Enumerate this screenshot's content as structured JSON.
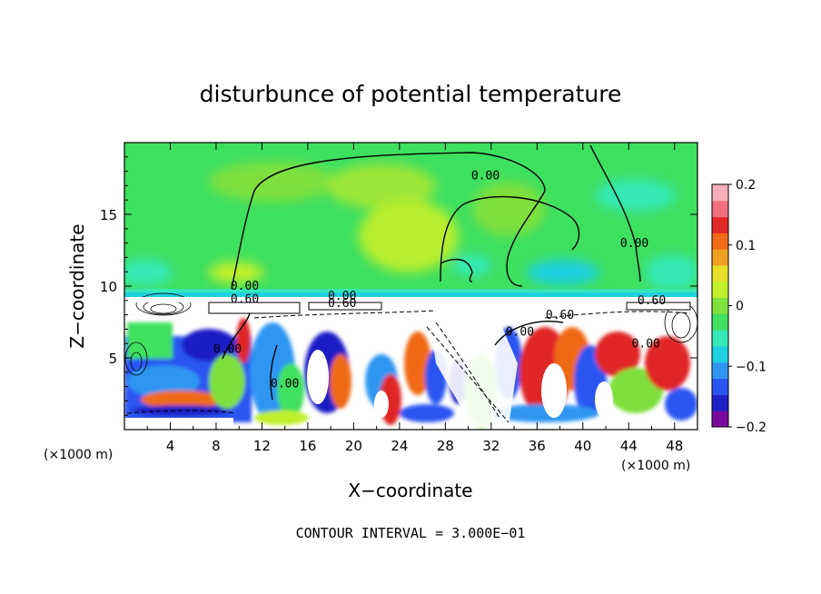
{
  "chart_data": {
    "type": "heatmap",
    "title": "disturbunce of potential temperature",
    "xlabel": "X−coordinate",
    "ylabel": "Z−coordinate",
    "x_unit_left": "(×1000 m)",
    "x_unit_right": "(×1000 m)",
    "xlim": [
      0,
      50
    ],
    "ylim": [
      0,
      20
    ],
    "x_ticks": [
      4,
      8,
      12,
      16,
      20,
      24,
      28,
      32,
      36,
      40,
      44,
      48
    ],
    "x_tick_labels": [
      "4",
      "8",
      "12",
      "16",
      "20",
      "24",
      "28",
      "32",
      "36",
      "40",
      "44",
      "48"
    ],
    "y_ticks": [
      5,
      10,
      15
    ],
    "y_tick_labels": [
      "5",
      "10",
      "15"
    ],
    "colorbar": {
      "range": [
        -0.2,
        0.2
      ],
      "labels": [
        "0.2",
        "0.1",
        "0",
        "−0.1",
        "−0.2"
      ],
      "label_values": [
        0.2,
        0.1,
        0,
        -0.1,
        -0.2
      ],
      "colors": [
        "#7a0a9e",
        "#1f1fc6",
        "#2a55f0",
        "#2f96f2",
        "#1ed0e0",
        "#36e8b4",
        "#3fe060",
        "#7fe03e",
        "#c0f02a",
        "#e8e028",
        "#f0a020",
        "#f06a18",
        "#e02828",
        "#f07080",
        "#f8b0b8"
      ]
    },
    "contour_labels": [
      {
        "x": 10.5,
        "z": 9.8,
        "text": "0.00"
      },
      {
        "x": 10.5,
        "z": 8.9,
        "text": "0.60"
      },
      {
        "x": 19.0,
        "z": 9.1,
        "text": "0.00"
      },
      {
        "x": 19.0,
        "z": 8.6,
        "text": "0.60"
      },
      {
        "x": 31.5,
        "z": 17.5,
        "text": "0.00"
      },
      {
        "x": 44.5,
        "z": 12.8,
        "text": "0.00"
      },
      {
        "x": 38.0,
        "z": 7.8,
        "text": "0.60"
      },
      {
        "x": 46.0,
        "z": 8.8,
        "text": "0.60"
      },
      {
        "x": 34.5,
        "z": 6.6,
        "text": "0.00"
      },
      {
        "x": 9.0,
        "z": 5.4,
        "text": "0.00"
      },
      {
        "x": 14.0,
        "z": 3.0,
        "text": "0.00"
      },
      {
        "x": 45.5,
        "z": 5.8,
        "text": "0.00"
      }
    ],
    "footer": "CONTOUR INTERVAL = 3.000E−01"
  }
}
